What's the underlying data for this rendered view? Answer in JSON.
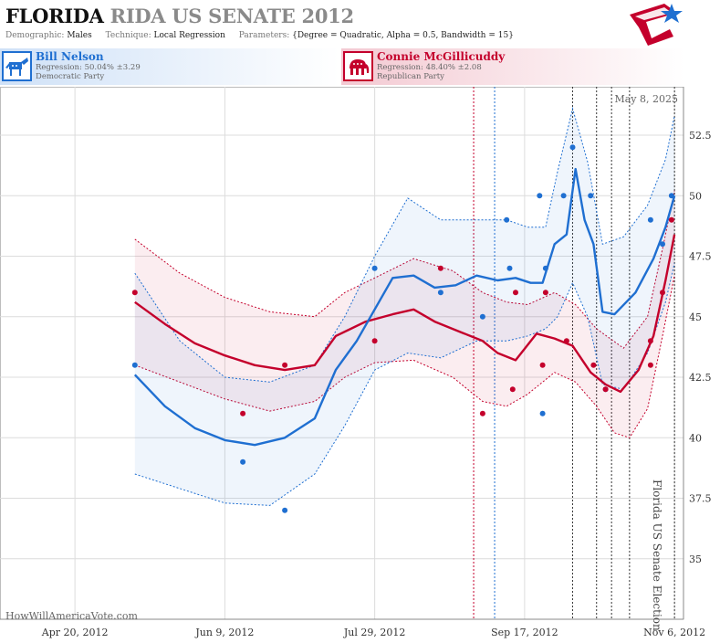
{
  "header": {
    "title_state": "FLORIDA",
    "title_rest": "RIDA US SENATE 2012",
    "demographic_label": "Demographic:",
    "demographic_value": "Males",
    "technique_label": "Technique:",
    "technique_value": "Local Regression",
    "parameters_label": "Parameters:",
    "parameters_value": "{Degree = Quadratic, Alpha = 0.5, Bandwidth = 15}"
  },
  "candidates": {
    "democrat": {
      "name": "Bill Nelson",
      "regression": "Regression: 50.04% ±3.29",
      "party": "Democratic Party",
      "color": "#1f6fd1",
      "icon": "donkey-icon"
    },
    "republican": {
      "name": "Connie McGillicuddy",
      "regression": "Regression: 48.40% ±2.08",
      "party": "Republican Party",
      "color": "#c4002c",
      "icon": "elephant-icon"
    }
  },
  "footer": {
    "date_stamp": "May 8, 2025",
    "source": "HowWillAmericaVote.com",
    "election_label": "Florida US Senate Election"
  },
  "chart_data": {
    "type": "line",
    "x_type": "date",
    "xlim": [
      "2012-03-26",
      "2012-11-09"
    ],
    "ylim": [
      32.5,
      54.5
    ],
    "y_ticks": [
      35,
      37.5,
      40,
      42.5,
      45,
      47.5,
      50,
      52.5
    ],
    "y_tick_labels": [
      "35",
      "37.5",
      "40",
      "42.5",
      "45",
      "47.5",
      "50",
      "52.5"
    ],
    "x_ticks": [
      "2012-04-20",
      "2012-06-09",
      "2012-07-29",
      "2012-09-17",
      "2012-11-06"
    ],
    "x_tick_labels": [
      "Apr 20, 2012",
      "Jun 9, 2012",
      "Jul 29, 2012",
      "Sep 17, 2012",
      "Nov 6, 2012"
    ],
    "grid": true,
    "election_date": "2012-11-06",
    "event_lines": [
      {
        "date": "2012-08-31",
        "color": "#c4002c"
      },
      {
        "date": "2012-09-07",
        "color": "#1f6fd1"
      },
      {
        "date": "2012-10-03",
        "color": "#333333"
      },
      {
        "date": "2012-10-11",
        "color": "#333333"
      },
      {
        "date": "2012-10-16",
        "color": "#333333"
      },
      {
        "date": "2012-10-22",
        "color": "#333333"
      },
      {
        "date": "2012-11-06",
        "color": "#333333"
      }
    ],
    "series": [
      {
        "name": "Bill Nelson",
        "party": "democrat",
        "color": "#1f6fd1",
        "points": [
          {
            "x": "2012-05-10",
            "y": 43
          },
          {
            "x": "2012-06-15",
            "y": 39
          },
          {
            "x": "2012-06-29",
            "y": 37
          },
          {
            "x": "2012-07-29",
            "y": 47
          },
          {
            "x": "2012-08-20",
            "y": 46
          },
          {
            "x": "2012-09-03",
            "y": 45
          },
          {
            "x": "2012-09-11",
            "y": 49
          },
          {
            "x": "2012-09-12",
            "y": 47
          },
          {
            "x": "2012-09-22",
            "y": 50
          },
          {
            "x": "2012-09-23",
            "y": 41
          },
          {
            "x": "2012-09-24",
            "y": 47
          },
          {
            "x": "2012-09-30",
            "y": 50
          },
          {
            "x": "2012-10-03",
            "y": 52
          },
          {
            "x": "2012-10-09",
            "y": 50
          },
          {
            "x": "2012-10-14",
            "y": 42
          },
          {
            "x": "2012-10-29",
            "y": 49
          },
          {
            "x": "2012-11-02",
            "y": 48
          },
          {
            "x": "2012-11-05",
            "y": 50
          }
        ],
        "trend": [
          {
            "x": "2012-05-10",
            "y": 42.6
          },
          {
            "x": "2012-05-20",
            "y": 41.3
          },
          {
            "x": "2012-05-30",
            "y": 40.4
          },
          {
            "x": "2012-06-09",
            "y": 39.9
          },
          {
            "x": "2012-06-19",
            "y": 39.7
          },
          {
            "x": "2012-06-29",
            "y": 40.0
          },
          {
            "x": "2012-07-09",
            "y": 40.8
          },
          {
            "x": "2012-07-16",
            "y": 42.8
          },
          {
            "x": "2012-07-23",
            "y": 44.0
          },
          {
            "x": "2012-07-29",
            "y": 45.3
          },
          {
            "x": "2012-08-04",
            "y": 46.6
          },
          {
            "x": "2012-08-11",
            "y": 46.7
          },
          {
            "x": "2012-08-18",
            "y": 46.2
          },
          {
            "x": "2012-08-25",
            "y": 46.3
          },
          {
            "x": "2012-09-01",
            "y": 46.7
          },
          {
            "x": "2012-09-08",
            "y": 46.5
          },
          {
            "x": "2012-09-14",
            "y": 46.6
          },
          {
            "x": "2012-09-19",
            "y": 46.4
          },
          {
            "x": "2012-09-23",
            "y": 46.4
          },
          {
            "x": "2012-09-27",
            "y": 48.0
          },
          {
            "x": "2012-10-01",
            "y": 48.4
          },
          {
            "x": "2012-10-04",
            "y": 51.1
          },
          {
            "x": "2012-10-07",
            "y": 49.0
          },
          {
            "x": "2012-10-10",
            "y": 48.0
          },
          {
            "x": "2012-10-13",
            "y": 45.2
          },
          {
            "x": "2012-10-17",
            "y": 45.1
          },
          {
            "x": "2012-10-24",
            "y": 46.0
          },
          {
            "x": "2012-10-30",
            "y": 47.4
          },
          {
            "x": "2012-11-03",
            "y": 48.7
          },
          {
            "x": "2012-11-06",
            "y": 50.0
          }
        ],
        "upper": [
          {
            "x": "2012-05-10",
            "y": 46.8
          },
          {
            "x": "2012-05-25",
            "y": 44.0
          },
          {
            "x": "2012-06-09",
            "y": 42.5
          },
          {
            "x": "2012-06-24",
            "y": 42.3
          },
          {
            "x": "2012-07-09",
            "y": 43.0
          },
          {
            "x": "2012-07-19",
            "y": 45.0
          },
          {
            "x": "2012-07-29",
            "y": 47.5
          },
          {
            "x": "2012-08-09",
            "y": 49.9
          },
          {
            "x": "2012-08-20",
            "y": 49.0
          },
          {
            "x": "2012-09-01",
            "y": 49.0
          },
          {
            "x": "2012-09-11",
            "y": 49.0
          },
          {
            "x": "2012-09-18",
            "y": 48.7
          },
          {
            "x": "2012-09-24",
            "y": 48.7
          },
          {
            "x": "2012-09-28",
            "y": 51.0
          },
          {
            "x": "2012-10-03",
            "y": 53.6
          },
          {
            "x": "2012-10-08",
            "y": 51.4
          },
          {
            "x": "2012-10-13",
            "y": 48.0
          },
          {
            "x": "2012-10-20",
            "y": 48.3
          },
          {
            "x": "2012-10-28",
            "y": 49.6
          },
          {
            "x": "2012-11-03",
            "y": 51.5
          },
          {
            "x": "2012-11-06",
            "y": 53.3
          }
        ],
        "lower": [
          {
            "x": "2012-05-10",
            "y": 38.5
          },
          {
            "x": "2012-05-25",
            "y": 37.9
          },
          {
            "x": "2012-06-09",
            "y": 37.3
          },
          {
            "x": "2012-06-24",
            "y": 37.2
          },
          {
            "x": "2012-07-09",
            "y": 38.5
          },
          {
            "x": "2012-07-19",
            "y": 40.5
          },
          {
            "x": "2012-07-29",
            "y": 42.8
          },
          {
            "x": "2012-08-09",
            "y": 43.5
          },
          {
            "x": "2012-08-20",
            "y": 43.3
          },
          {
            "x": "2012-09-01",
            "y": 44.0
          },
          {
            "x": "2012-09-11",
            "y": 44.0
          },
          {
            "x": "2012-09-18",
            "y": 44.2
          },
          {
            "x": "2012-09-24",
            "y": 44.5
          },
          {
            "x": "2012-09-28",
            "y": 45.0
          },
          {
            "x": "2012-10-03",
            "y": 46.4
          },
          {
            "x": "2012-10-08",
            "y": 45.0
          },
          {
            "x": "2012-10-13",
            "y": 42.2
          },
          {
            "x": "2012-10-20",
            "y": 42.0
          },
          {
            "x": "2012-10-28",
            "y": 43.5
          },
          {
            "x": "2012-11-03",
            "y": 45.6
          },
          {
            "x": "2012-11-06",
            "y": 47.2
          }
        ]
      },
      {
        "name": "Connie McGillicuddy",
        "party": "republican",
        "color": "#c4002c",
        "points": [
          {
            "x": "2012-05-10",
            "y": 46
          },
          {
            "x": "2012-06-15",
            "y": 41
          },
          {
            "x": "2012-06-29",
            "y": 43
          },
          {
            "x": "2012-07-29",
            "y": 44
          },
          {
            "x": "2012-08-20",
            "y": 47
          },
          {
            "x": "2012-09-03",
            "y": 41
          },
          {
            "x": "2012-09-13",
            "y": 42
          },
          {
            "x": "2012-09-14",
            "y": 46
          },
          {
            "x": "2012-09-23",
            "y": 43
          },
          {
            "x": "2012-09-24",
            "y": 46
          },
          {
            "x": "2012-10-01",
            "y": 44
          },
          {
            "x": "2012-10-10",
            "y": 43
          },
          {
            "x": "2012-10-14",
            "y": 42
          },
          {
            "x": "2012-10-29",
            "y": 43
          },
          {
            "x": "2012-10-29",
            "y": 44
          },
          {
            "x": "2012-11-02",
            "y": 46
          },
          {
            "x": "2012-11-05",
            "y": 49
          }
        ],
        "trend": [
          {
            "x": "2012-05-10",
            "y": 45.6
          },
          {
            "x": "2012-05-20",
            "y": 44.7
          },
          {
            "x": "2012-05-30",
            "y": 43.9
          },
          {
            "x": "2012-06-09",
            "y": 43.4
          },
          {
            "x": "2012-06-19",
            "y": 43.0
          },
          {
            "x": "2012-06-29",
            "y": 42.8
          },
          {
            "x": "2012-07-09",
            "y": 43.0
          },
          {
            "x": "2012-07-16",
            "y": 44.2
          },
          {
            "x": "2012-07-26",
            "y": 44.8
          },
          {
            "x": "2012-08-04",
            "y": 45.1
          },
          {
            "x": "2012-08-11",
            "y": 45.3
          },
          {
            "x": "2012-08-18",
            "y": 44.8
          },
          {
            "x": "2012-08-26",
            "y": 44.4
          },
          {
            "x": "2012-09-03",
            "y": 44.0
          },
          {
            "x": "2012-09-08",
            "y": 43.5
          },
          {
            "x": "2012-09-14",
            "y": 43.2
          },
          {
            "x": "2012-09-21",
            "y": 44.3
          },
          {
            "x": "2012-09-27",
            "y": 44.1
          },
          {
            "x": "2012-10-03",
            "y": 43.8
          },
          {
            "x": "2012-10-09",
            "y": 42.7
          },
          {
            "x": "2012-10-14",
            "y": 42.2
          },
          {
            "x": "2012-10-19",
            "y": 41.9
          },
          {
            "x": "2012-10-25",
            "y": 42.8
          },
          {
            "x": "2012-10-30",
            "y": 44.2
          },
          {
            "x": "2012-11-03",
            "y": 46.5
          },
          {
            "x": "2012-11-06",
            "y": 48.4
          }
        ],
        "upper": [
          {
            "x": "2012-05-10",
            "y": 48.2
          },
          {
            "x": "2012-05-25",
            "y": 46.8
          },
          {
            "x": "2012-06-09",
            "y": 45.8
          },
          {
            "x": "2012-06-24",
            "y": 45.2
          },
          {
            "x": "2012-07-09",
            "y": 45.0
          },
          {
            "x": "2012-07-19",
            "y": 46.0
          },
          {
            "x": "2012-07-29",
            "y": 46.6
          },
          {
            "x": "2012-08-11",
            "y": 47.4
          },
          {
            "x": "2012-08-24",
            "y": 46.9
          },
          {
            "x": "2012-09-03",
            "y": 46.0
          },
          {
            "x": "2012-09-11",
            "y": 45.6
          },
          {
            "x": "2012-09-18",
            "y": 45.5
          },
          {
            "x": "2012-09-27",
            "y": 46.0
          },
          {
            "x": "2012-10-04",
            "y": 45.5
          },
          {
            "x": "2012-10-11",
            "y": 44.5
          },
          {
            "x": "2012-10-20",
            "y": 43.7
          },
          {
            "x": "2012-10-28",
            "y": 45.0
          },
          {
            "x": "2012-11-02",
            "y": 47.8
          },
          {
            "x": "2012-11-06",
            "y": 50.2
          }
        ],
        "lower": [
          {
            "x": "2012-05-10",
            "y": 43.0
          },
          {
            "x": "2012-05-25",
            "y": 42.3
          },
          {
            "x": "2012-06-09",
            "y": 41.6
          },
          {
            "x": "2012-06-24",
            "y": 41.1
          },
          {
            "x": "2012-07-09",
            "y": 41.5
          },
          {
            "x": "2012-07-19",
            "y": 42.5
          },
          {
            "x": "2012-07-29",
            "y": 43.1
          },
          {
            "x": "2012-08-11",
            "y": 43.2
          },
          {
            "x": "2012-08-24",
            "y": 42.5
          },
          {
            "x": "2012-09-03",
            "y": 41.5
          },
          {
            "x": "2012-09-11",
            "y": 41.3
          },
          {
            "x": "2012-09-18",
            "y": 41.8
          },
          {
            "x": "2012-09-27",
            "y": 42.7
          },
          {
            "x": "2012-10-04",
            "y": 42.3
          },
          {
            "x": "2012-10-11",
            "y": 41.3
          },
          {
            "x": "2012-10-17",
            "y": 40.2
          },
          {
            "x": "2012-10-22",
            "y": 40.0
          },
          {
            "x": "2012-10-28",
            "y": 41.2
          },
          {
            "x": "2012-11-02",
            "y": 44.2
          },
          {
            "x": "2012-11-06",
            "y": 46.7
          }
        ]
      }
    ]
  }
}
